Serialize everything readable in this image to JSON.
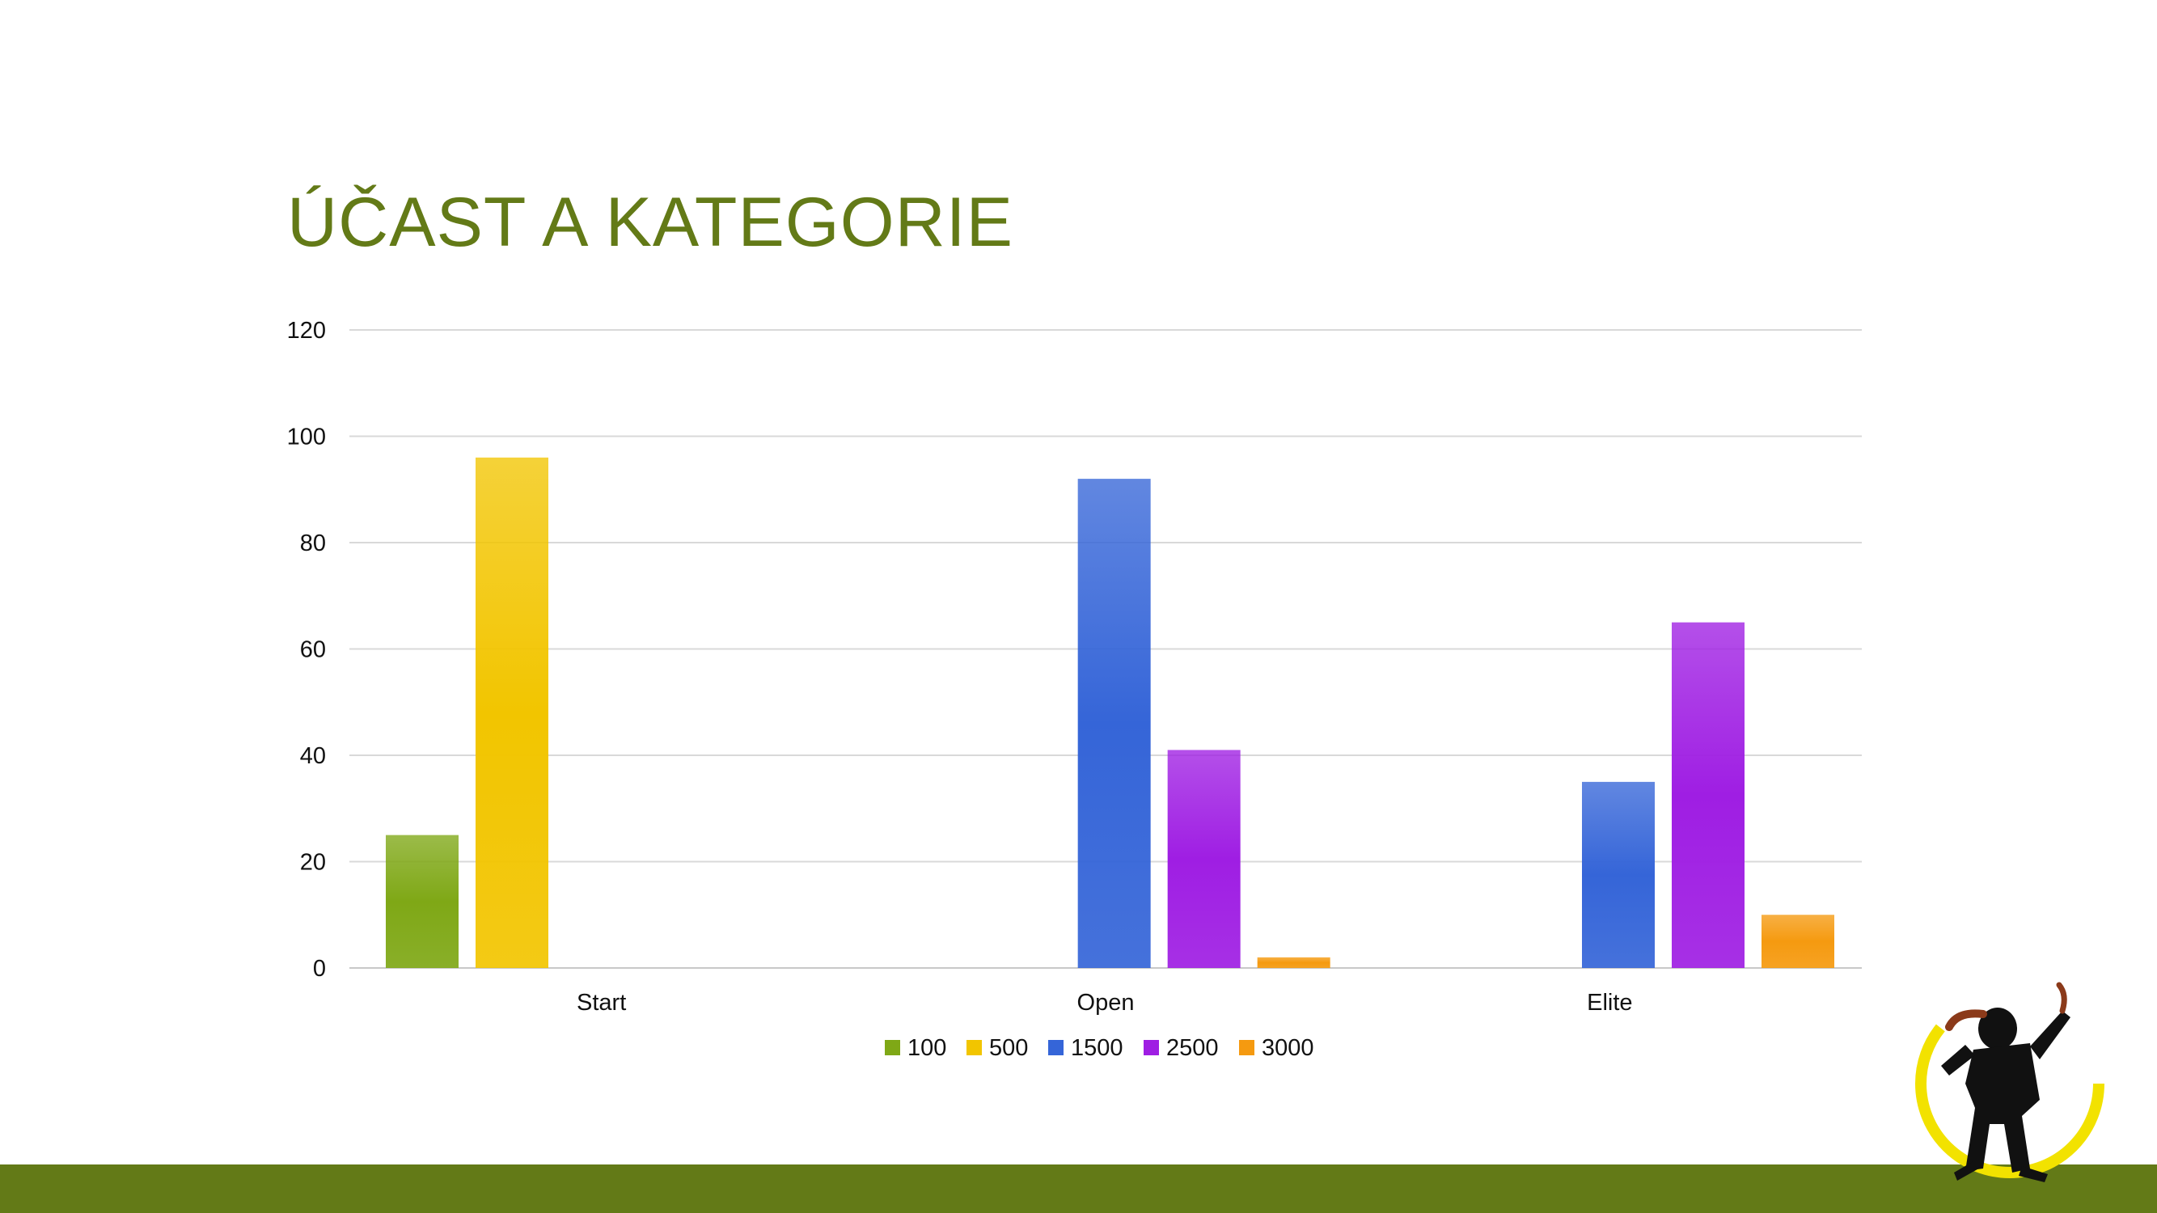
{
  "slide": {
    "title": "ÚČAST A KATEGORIE"
  },
  "colors": {
    "title": "#637a17",
    "footer": "#637a17",
    "gridline": "#d9d9d9",
    "100": "#7fa816",
    "500": "#f2c500",
    "1500": "#3565d8",
    "2500": "#9f1ee3",
    "3000": "#f59a10"
  },
  "chart_data": {
    "type": "bar",
    "title": "",
    "xlabel": "",
    "ylabel": "",
    "categories": [
      "Start",
      "Open",
      "Elite"
    ],
    "ylim": [
      0,
      120
    ],
    "yticks": [
      0,
      20,
      40,
      60,
      80,
      100,
      120
    ],
    "grid": true,
    "legend_position": "bottom",
    "series": [
      {
        "name": "100",
        "values": [
          25,
          null,
          null
        ],
        "color": "#7fa816"
      },
      {
        "name": "500",
        "values": [
          96,
          null,
          null
        ],
        "color": "#f2c500"
      },
      {
        "name": "1500",
        "values": [
          null,
          92,
          35
        ],
        "color": "#3565d8"
      },
      {
        "name": "2500",
        "values": [
          null,
          41,
          65
        ],
        "color": "#9f1ee3"
      },
      {
        "name": "3000",
        "values": [
          null,
          2,
          10
        ],
        "color": "#f59a10"
      }
    ]
  }
}
